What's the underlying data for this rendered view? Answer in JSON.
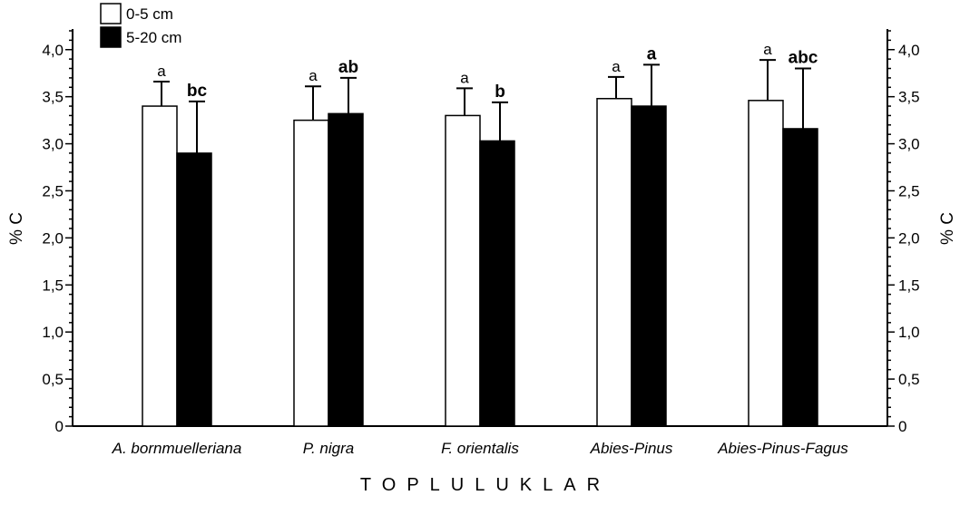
{
  "chart_data": {
    "type": "bar",
    "categories": [
      "A. bornmuelleriana",
      "P. nigra",
      "F. orientalis",
      "Abies-Pinus",
      "Abies-Pinus-Fagus"
    ],
    "series": [
      {
        "name": "0-5 cm",
        "fill": "#ffffff",
        "values": [
          3.4,
          3.25,
          3.3,
          3.48,
          3.46
        ],
        "errors": [
          0.26,
          0.36,
          0.29,
          0.23,
          0.43
        ],
        "letters": [
          "a",
          "a",
          "a",
          "a",
          "a"
        ],
        "letters_bold": false
      },
      {
        "name": "5-20 cm",
        "fill": "#000000",
        "values": [
          2.9,
          3.32,
          3.03,
          3.4,
          3.16
        ],
        "errors": [
          0.55,
          0.38,
          0.41,
          0.44,
          0.64
        ],
        "letters": [
          "bc",
          "ab",
          "b",
          "a",
          "abc"
        ],
        "letters_bold": true
      }
    ],
    "ylim": [
      0,
      4.2
    ],
    "yticks": [
      "0",
      "0,5",
      "1,0",
      "1,5",
      "2,0",
      "2,5",
      "3,0",
      "3,5",
      "4,0"
    ],
    "ytick_values": [
      0,
      0.5,
      1.0,
      1.5,
      2.0,
      2.5,
      3.0,
      3.5,
      4.0
    ],
    "minor_tick_step": 0.1,
    "ylabel_left": "% C",
    "ylabel_right": "% C",
    "xlabel": "TOPLULUKLAR",
    "legend_position": "top-left",
    "grid": false
  }
}
